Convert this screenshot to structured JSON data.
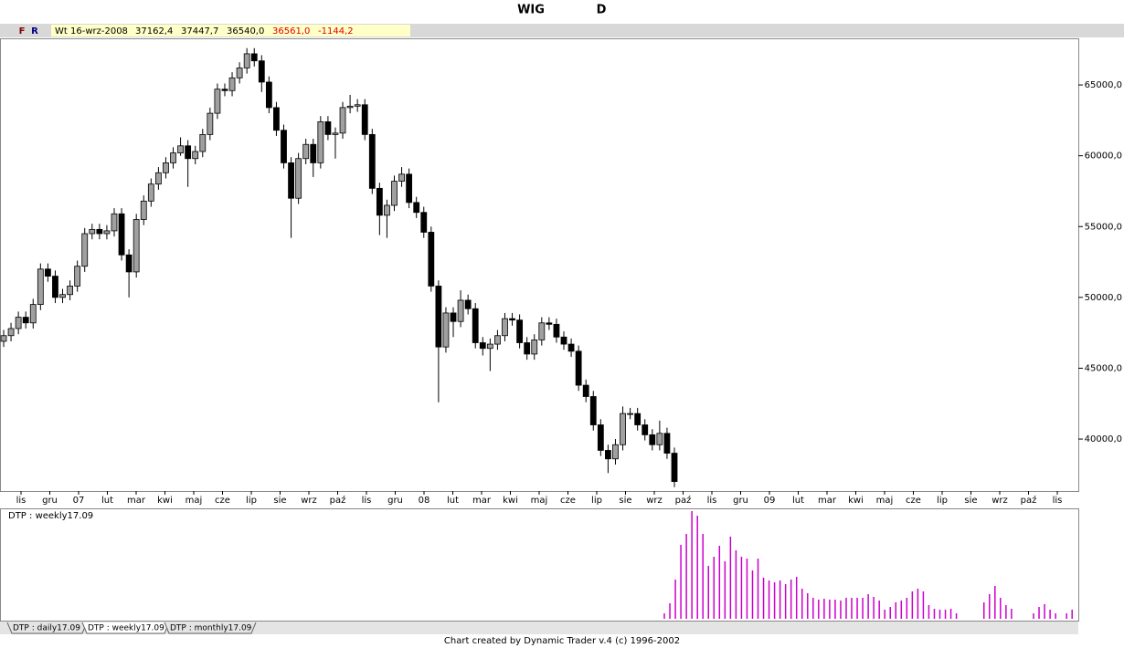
{
  "chart_data": {
    "type": "candlestick",
    "title": "WIG",
    "period": "D",
    "menu": [
      "F",
      "R"
    ],
    "info": {
      "date": "Wt 16-wrz-2008",
      "open": "37162,4",
      "high": "37447,7",
      "low": "36540,0",
      "close": "36561,0",
      "change": "-1144,2"
    },
    "up_color": "#a0a0a0",
    "down_color": "#000000",
    "ylim": [
      36330,
      68290
    ],
    "yticks": [
      {
        "value": 40000,
        "label": "40000,0"
      },
      {
        "value": 45000,
        "label": "45000,0"
      },
      {
        "value": 50000,
        "label": "50000,0"
      },
      {
        "value": 55000,
        "label": "55000,0"
      },
      {
        "value": 60000,
        "label": "60000,0"
      },
      {
        "value": 65000,
        "label": "65000,0"
      }
    ],
    "x_labels": [
      "lis",
      "gru",
      "07",
      "lut",
      "mar",
      "kwi",
      "maj",
      "cze",
      "lip",
      "sie",
      "wrz",
      "paź",
      "lis",
      "gru",
      "08",
      "lut",
      "mar",
      "kwi",
      "maj",
      "cze",
      "lip",
      "sie",
      "wrz",
      "paź",
      "lis",
      "gru",
      "09",
      "lut",
      "mar",
      "kwi",
      "maj",
      "cze",
      "lip",
      "sie",
      "wrz",
      "paź",
      "lis"
    ],
    "candles": [
      [
        46900,
        47700,
        46500,
        47300
      ],
      [
        47300,
        48200,
        46900,
        47800
      ],
      [
        47800,
        49000,
        47400,
        48600
      ],
      [
        48600,
        49000,
        47800,
        48200
      ],
      [
        48200,
        49900,
        47800,
        49500
      ],
      [
        49500,
        52400,
        49100,
        52000
      ],
      [
        52000,
        52400,
        51100,
        51500
      ],
      [
        51500,
        51900,
        49600,
        50000
      ],
      [
        50000,
        50600,
        49600,
        50200
      ],
      [
        50200,
        51200,
        49800,
        50800
      ],
      [
        50800,
        52600,
        50400,
        52200
      ],
      [
        52200,
        54900,
        51800,
        54500
      ],
      [
        54500,
        55200,
        54100,
        54800
      ],
      [
        54800,
        55200,
        54100,
        54500
      ],
      [
        54500,
        55100,
        54100,
        54700
      ],
      [
        54700,
        56300,
        54300,
        55900
      ],
      [
        55900,
        56300,
        52600,
        53000
      ],
      [
        53000,
        53400,
        50000,
        51800
      ],
      [
        51800,
        55900,
        51400,
        55500
      ],
      [
        55500,
        57200,
        55100,
        56800
      ],
      [
        56800,
        58400,
        56400,
        58000
      ],
      [
        58000,
        59200,
        57600,
        58800
      ],
      [
        58800,
        59900,
        58400,
        59500
      ],
      [
        59500,
        60600,
        59100,
        60200
      ],
      [
        60200,
        61300,
        60000,
        60700
      ],
      [
        60700,
        61100,
        57800,
        59800
      ],
      [
        59800,
        60700,
        59400,
        60300
      ],
      [
        60300,
        61900,
        59900,
        61500
      ],
      [
        61500,
        63400,
        61100,
        63000
      ],
      [
        63000,
        65100,
        62600,
        64700
      ],
      [
        64700,
        65100,
        64200,
        64600
      ],
      [
        64600,
        65900,
        64200,
        65500
      ],
      [
        65500,
        66600,
        65100,
        66200
      ],
      [
        66200,
        67600,
        65800,
        67200
      ],
      [
        67200,
        67600,
        66300,
        66700
      ],
      [
        66700,
        67100,
        64500,
        65200
      ],
      [
        65200,
        65600,
        63000,
        63400
      ],
      [
        63400,
        63800,
        61400,
        61800
      ],
      [
        61800,
        62200,
        59100,
        59500
      ],
      [
        59500,
        59900,
        54200,
        57000
      ],
      [
        57000,
        60200,
        56600,
        59800
      ],
      [
        59800,
        61200,
        59400,
        60800
      ],
      [
        60800,
        61200,
        58500,
        59500
      ],
      [
        59500,
        62800,
        59100,
        62400
      ],
      [
        62400,
        62800,
        61100,
        61500
      ],
      [
        61500,
        62000,
        59800,
        61600
      ],
      [
        61600,
        63800,
        61200,
        63400
      ],
      [
        63400,
        64300,
        63000,
        63500
      ],
      [
        63500,
        64000,
        63100,
        63600
      ],
      [
        63600,
        64000,
        61100,
        61500
      ],
      [
        61500,
        61900,
        57300,
        57700
      ],
      [
        57700,
        58100,
        54400,
        55800
      ],
      [
        55800,
        56900,
        54200,
        56500
      ],
      [
        56500,
        58600,
        56100,
        58200
      ],
      [
        58200,
        59200,
        57800,
        58700
      ],
      [
        58700,
        59100,
        56300,
        56700
      ],
      [
        56700,
        57100,
        55600,
        56000
      ],
      [
        56000,
        56400,
        54200,
        54600
      ],
      [
        54600,
        55000,
        50400,
        50800
      ],
      [
        50800,
        51200,
        42600,
        46500
      ],
      [
        46500,
        49300,
        46100,
        48900
      ],
      [
        48900,
        49300,
        47200,
        48300
      ],
      [
        48300,
        50500,
        47900,
        49800
      ],
      [
        49800,
        50200,
        48800,
        49200
      ],
      [
        49200,
        49600,
        46400,
        46800
      ],
      [
        46800,
        47200,
        45900,
        46400
      ],
      [
        46400,
        47100,
        44800,
        46700
      ],
      [
        46700,
        47700,
        46300,
        47300
      ],
      [
        47300,
        48900,
        46900,
        48500
      ],
      [
        48500,
        48900,
        48000,
        48400
      ],
      [
        48400,
        48800,
        46400,
        46800
      ],
      [
        46800,
        47200,
        45600,
        46000
      ],
      [
        46000,
        47400,
        45600,
        47000
      ],
      [
        47000,
        48600,
        46600,
        48200
      ],
      [
        48200,
        48600,
        47700,
        48100
      ],
      [
        48100,
        48500,
        46800,
        47200
      ],
      [
        47200,
        47600,
        46300,
        46700
      ],
      [
        46700,
        47100,
        45800,
        46200
      ],
      [
        46200,
        46600,
        43400,
        43800
      ],
      [
        43800,
        44200,
        42600,
        43000
      ],
      [
        43000,
        43400,
        40600,
        41000
      ],
      [
        41000,
        41400,
        38800,
        39200
      ],
      [
        39200,
        39600,
        37600,
        38600
      ],
      [
        38600,
        40000,
        38200,
        39600
      ],
      [
        39600,
        42300,
        39200,
        41800
      ],
      [
        41800,
        42200,
        41400,
        41800
      ],
      [
        41800,
        42200,
        40600,
        41000
      ],
      [
        41000,
        41400,
        39900,
        40300
      ],
      [
        40300,
        40700,
        39200,
        39600
      ],
      [
        39600,
        41300,
        39200,
        40400
      ],
      [
        40400,
        40800,
        38600,
        39000
      ],
      [
        39000,
        39400,
        36600,
        37000
      ]
    ],
    "indicator": {
      "name": "DTP : weekly17.09",
      "color": "#cc00cc",
      "ylim": [
        0,
        120
      ],
      "values": [
        6,
        17,
        43,
        81,
        93,
        118,
        113,
        93,
        58,
        68,
        80,
        63,
        90,
        75,
        68,
        66,
        53,
        66,
        45,
        42,
        40,
        42,
        38,
        43,
        46,
        33,
        28,
        23,
        21,
        22,
        21,
        21,
        20,
        23,
        23,
        23,
        23,
        27,
        24,
        20,
        10,
        13,
        18,
        20,
        23,
        30,
        33,
        30,
        15,
        11,
        10,
        10,
        11,
        6,
        null,
        null,
        null,
        null,
        18,
        27,
        36,
        23,
        15,
        11,
        null,
        null,
        null,
        6,
        13,
        16,
        10,
        6,
        null,
        6,
        10
      ]
    },
    "tabs": [
      "DTP : daily17.09",
      "DTP : weekly17.09",
      "DTP : monthly17.09"
    ],
    "footer": "Chart created by Dynamic Trader v.4  (c) 1996-2002"
  }
}
